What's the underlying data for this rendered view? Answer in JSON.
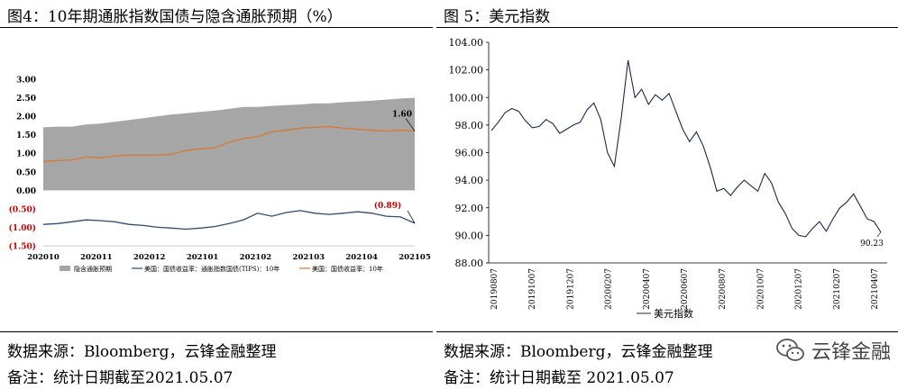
{
  "left": {
    "title": "图4：10年期通胀指数国债与隐含通胀预期（%）",
    "source": "数据来源：Bloomberg，云锋金融整理",
    "note": "备注：统计日期截至2021.05.07"
  },
  "right": {
    "title": "图 5：美元指数",
    "source": "数据来源：Bloomberg，云锋金融整理",
    "note": "备注：统计日期截至 2021.05.07"
  },
  "watermark": "云锋金融",
  "colors": {
    "area": "#a6a6a6",
    "nominal": "#d9782f",
    "tips": "#2f4a73",
    "dxy": "#1c2a44",
    "negative_label": "#cc0000"
  },
  "chart_data": [
    {
      "type": "area",
      "ylim": [
        -1.5,
        3.0
      ],
      "y_ticks": [
        "3.00",
        "2.50",
        "2.00",
        "1.50",
        "1.00",
        "0.50",
        "0.00",
        "(0.50)",
        "(1.00)",
        "(1.50)"
      ],
      "negative_ticks": [
        "(0.50)",
        "(1.00)",
        "(1.50)"
      ],
      "x_ticks": [
        "202010",
        "202011",
        "202012",
        "202101",
        "202102",
        "202103",
        "202104",
        "202105"
      ],
      "grid": false,
      "legend_position": "bottom",
      "series": [
        {
          "name": "隐含通胀预期",
          "type": "area",
          "values": [
            1.7,
            1.72,
            1.72,
            1.78,
            1.8,
            1.85,
            1.9,
            1.95,
            2.0,
            2.05,
            2.08,
            2.12,
            2.15,
            2.2,
            2.25,
            2.25,
            2.28,
            2.3,
            2.32,
            2.35,
            2.35,
            2.38,
            2.4,
            2.42,
            2.45,
            2.48,
            2.5
          ]
        },
        {
          "name": "美国：国债收益率：通胀指数国债(TIPS)：10年",
          "type": "line",
          "values": [
            -0.92,
            -0.9,
            -0.85,
            -0.8,
            -0.82,
            -0.85,
            -0.92,
            -0.95,
            -1.0,
            -1.02,
            -1.05,
            -1.02,
            -0.98,
            -0.9,
            -0.8,
            -0.62,
            -0.7,
            -0.6,
            -0.55,
            -0.62,
            -0.65,
            -0.62,
            -0.58,
            -0.62,
            -0.7,
            -0.72,
            -0.89
          ]
        },
        {
          "name": "美国：国债收益率：10年",
          "type": "line",
          "values": [
            0.78,
            0.8,
            0.82,
            0.9,
            0.88,
            0.92,
            0.95,
            0.95,
            0.95,
            0.97,
            1.08,
            1.12,
            1.15,
            1.3,
            1.4,
            1.45,
            1.58,
            1.62,
            1.68,
            1.7,
            1.72,
            1.68,
            1.65,
            1.62,
            1.6,
            1.62,
            1.6
          ]
        }
      ],
      "annotations": [
        "1.60",
        "(0.89)"
      ]
    },
    {
      "type": "line",
      "ylim": [
        88.0,
        104.0
      ],
      "y_ticks": [
        "104.00",
        "102.00",
        "100.00",
        "98.00",
        "96.00",
        "94.00",
        "92.00",
        "90.00",
        "88.00"
      ],
      "x_ticks": [
        "20190807",
        "20191007",
        "20191207",
        "20200207",
        "20200407",
        "20200607",
        "20200807",
        "20201007",
        "20201207",
        "20210207",
        "20210407"
      ],
      "grid": false,
      "legend_position": "bottom",
      "series": [
        {
          "name": "美元指数",
          "values": [
            97.6,
            98.2,
            98.9,
            99.2,
            99.0,
            98.3,
            97.8,
            97.9,
            98.4,
            98.1,
            97.4,
            97.7,
            98.0,
            98.2,
            99.1,
            99.6,
            98.4,
            96.0,
            95.0,
            98.5,
            102.7,
            100.0,
            100.6,
            99.5,
            100.2,
            99.8,
            100.3,
            99.0,
            97.7,
            96.8,
            97.5,
            96.5,
            95.0,
            93.2,
            93.4,
            92.9,
            93.5,
            94.0,
            93.6,
            93.2,
            94.5,
            93.8,
            92.4,
            91.6,
            90.5,
            90.0,
            89.9,
            90.5,
            91.0,
            90.3,
            91.2,
            92.0,
            92.4,
            93.0,
            92.1,
            91.2,
            91.0,
            90.23
          ]
        }
      ],
      "annotations": [
        "90.23"
      ]
    }
  ]
}
